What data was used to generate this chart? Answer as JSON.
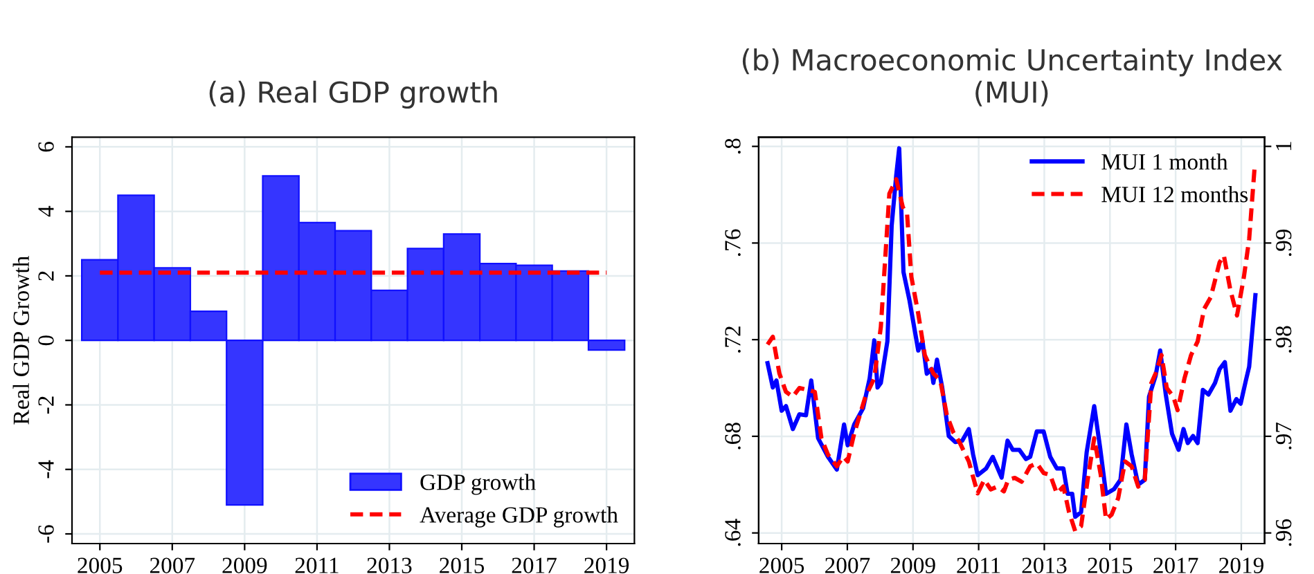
{
  "chart_data": [
    {
      "type": "bar",
      "title": "(a) Real GDP growth",
      "ylabel": "Real GDP Growth",
      "x": [
        2005,
        2006,
        2007,
        2008,
        2009,
        2010,
        2011,
        2012,
        2013,
        2014,
        2015,
        2016,
        2017,
        2018,
        2019
      ],
      "xlim": [
        2004.23,
        2019.77
      ],
      "xticks": [
        2005,
        2007,
        2009,
        2011,
        2013,
        2015,
        2017,
        2019
      ],
      "ylim": [
        -6.3,
        6.3
      ],
      "yticks": [
        -6,
        -4,
        -2,
        0,
        2,
        4,
        6
      ],
      "grid": true,
      "legend": "bottom right",
      "series": [
        {
          "name": "GDP growth",
          "color": "#3535ff",
          "values": [
            2.5,
            4.5,
            2.25,
            0.9,
            -5.1,
            5.1,
            3.65,
            3.4,
            1.55,
            2.85,
            3.3,
            2.38,
            2.33,
            2.15,
            -0.3
          ]
        },
        {
          "name": "Average GDP growth",
          "type": "line",
          "color": "#ff0000",
          "line_style": "dashed",
          "x": [
            2005,
            2019
          ],
          "values": [
            2.1,
            2.1
          ]
        }
      ]
    },
    {
      "type": "line",
      "title": "(b) Macroeconomic Uncertainty Index\n(MUI)",
      "xlim": [
        2004.3,
        2019.71
      ],
      "xticks": [
        2005,
        2007,
        2009,
        2011,
        2013,
        2015,
        2017,
        2019
      ],
      "ylim": [
        0.6356,
        0.8038
      ],
      "yticks": [
        {
          "value": 0.64,
          "label": ".64"
        },
        {
          "value": 0.68,
          "label": ".68"
        },
        {
          "value": 0.72,
          "label": ".72"
        },
        {
          "value": 0.76,
          "label": ".76"
        },
        {
          "value": 0.8,
          "label": ".8"
        }
      ],
      "y2lim": [
        0.9589,
        1.00095
      ],
      "y2ticks": [
        {
          "value": 0.96,
          "label": ".96"
        },
        {
          "value": 0.97,
          "label": ".97"
        },
        {
          "value": 0.98,
          "label": ".98"
        },
        {
          "value": 0.99,
          "label": ".99"
        },
        1
      ],
      "grid": true,
      "legend": "top right",
      "series": [
        {
          "name": "MUI 1 month",
          "color": "#0000ff",
          "line_style": "solid",
          "axis": "y",
          "x": [
            2004.57,
            2004.73,
            2004.84,
            2005.0,
            2005.13,
            2005.34,
            2005.54,
            2005.74,
            2005.9,
            2006.11,
            2006.41,
            2006.68,
            2006.9,
            2007.01,
            2007.21,
            2007.48,
            2007.68,
            2007.82,
            2007.92,
            2008.02,
            2008.22,
            2008.35,
            2008.49,
            2008.58,
            2008.71,
            2008.89,
            2009.16,
            2009.29,
            2009.42,
            2009.56,
            2009.62,
            2009.73,
            2009.89,
            2010.09,
            2010.29,
            2010.5,
            2010.7,
            2010.83,
            2010.97,
            2011.23,
            2011.43,
            2011.7,
            2011.88,
            2012.04,
            2012.24,
            2012.44,
            2012.57,
            2012.77,
            2012.98,
            2013.18,
            2013.38,
            2013.58,
            2013.71,
            2013.85,
            2013.94,
            2014.12,
            2014.29,
            2014.52,
            2014.7,
            2014.88,
            2015.12,
            2015.32,
            2015.5,
            2015.66,
            2015.86,
            2016.06,
            2016.19,
            2016.39,
            2016.53,
            2016.7,
            2016.89,
            2017.09,
            2017.24,
            2017.37,
            2017.53,
            2017.67,
            2017.83,
            2018.0,
            2018.2,
            2018.34,
            2018.5,
            2018.67,
            2018.85,
            2018.98,
            2019.14,
            2019.24,
            2019.43
          ],
          "values": [
            0.7103,
            0.7002,
            0.7031,
            0.6906,
            0.6925,
            0.683,
            0.6891,
            0.6887,
            0.7031,
            0.6792,
            0.6715,
            0.6662,
            0.6849,
            0.6763,
            0.6849,
            0.6916,
            0.704,
            0.7197,
            0.7002,
            0.7021,
            0.7193,
            0.7671,
            0.7881,
            0.7992,
            0.748,
            0.7365,
            0.7155,
            0.7193,
            0.7059,
            0.7078,
            0.7021,
            0.7117,
            0.7002,
            0.6801,
            0.6776,
            0.6782,
            0.683,
            0.6725,
            0.6639,
            0.6667,
            0.6715,
            0.6629,
            0.6782,
            0.6744,
            0.6744,
            0.6706,
            0.6715,
            0.682,
            0.682,
            0.6715,
            0.6667,
            0.6667,
            0.6562,
            0.6562,
            0.6467,
            0.6486,
            0.6734,
            0.6925,
            0.6753,
            0.6562,
            0.6581,
            0.662,
            0.6849,
            0.6725,
            0.66,
            0.662,
            0.6964,
            0.705,
            0.7155,
            0.6973,
            0.6811,
            0.6744,
            0.683,
            0.6772,
            0.6801,
            0.6772,
            0.6992,
            0.6973,
            0.7021,
            0.7078,
            0.7107,
            0.6906,
            0.6954,
            0.6935,
            0.7031,
            0.7088,
            0.7384
          ]
        },
        {
          "name": "MUI 12 months",
          "color": "#ff0000",
          "line_style": "dashed",
          "axis": "y2",
          "x": [
            2004.57,
            2004.73,
            2004.93,
            2005.13,
            2005.34,
            2005.54,
            2005.8,
            2006.01,
            2006.21,
            2006.41,
            2006.68,
            2006.88,
            2007.01,
            2007.21,
            2007.55,
            2007.82,
            2008.02,
            2008.28,
            2008.49,
            2008.69,
            2008.82,
            2008.95,
            2009.16,
            2009.36,
            2009.62,
            2009.83,
            2010.03,
            2010.23,
            2010.43,
            2010.7,
            2010.97,
            2011.17,
            2011.37,
            2011.57,
            2011.77,
            2011.9,
            2012.1,
            2012.31,
            2012.57,
            2012.77,
            2012.98,
            2013.18,
            2013.38,
            2013.58,
            2013.75,
            2013.94,
            2014.12,
            2014.32,
            2014.52,
            2014.72,
            2014.88,
            2015.05,
            2015.25,
            2015.46,
            2015.66,
            2015.86,
            2016.06,
            2016.26,
            2016.39,
            2016.57,
            2016.73,
            2016.93,
            2017.06,
            2017.27,
            2017.47,
            2017.67,
            2017.87,
            2018.07,
            2018.34,
            2018.47,
            2018.67,
            2018.87,
            2019.08,
            2019.24,
            2019.41
          ],
          "values": [
            0.9795,
            0.9803,
            0.9765,
            0.9746,
            0.9741,
            0.975,
            0.9748,
            0.9746,
            0.9698,
            0.9681,
            0.9669,
            0.9679,
            0.9674,
            0.9703,
            0.9741,
            0.976,
            0.9813,
            0.9951,
            0.9966,
            0.9937,
            0.993,
            0.9865,
            0.9827,
            0.9784,
            0.9765,
            0.9758,
            0.9722,
            0.9704,
            0.9693,
            0.9674,
            0.9641,
            0.9655,
            0.9645,
            0.9648,
            0.9643,
            0.9655,
            0.9657,
            0.9653,
            0.9669,
            0.9672,
            0.9662,
            0.966,
            0.9641,
            0.9648,
            0.9622,
            0.9602,
            0.9607,
            0.9655,
            0.9698,
            0.966,
            0.9614,
            0.9619,
            0.9636,
            0.9674,
            0.9669,
            0.9648,
            0.9655,
            0.9755,
            0.9765,
            0.9784,
            0.975,
            0.9741,
            0.9727,
            0.976,
            0.9784,
            0.9798,
            0.9832,
            0.9844,
            0.988,
            0.9887,
            0.9851,
            0.9825,
            0.9865,
            0.9904,
            0.998
          ]
        }
      ]
    }
  ]
}
